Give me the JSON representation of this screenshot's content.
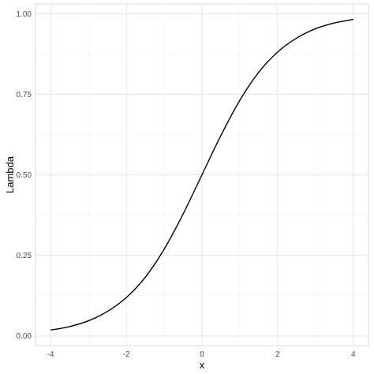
{
  "chart_data": {
    "type": "line",
    "title": "",
    "xlabel": "x",
    "ylabel": "Lambda",
    "xlim": [
      -4.4,
      4.4
    ],
    "ylim": [
      -0.03,
      1.03
    ],
    "x_ticks": [
      -4,
      -2,
      0,
      2,
      4
    ],
    "x_tick_labels": [
      "-4",
      "-2",
      "0",
      "2",
      "4"
    ],
    "y_ticks": [
      0,
      0.25,
      0.5,
      0.75,
      1
    ],
    "y_tick_labels": [
      "0.00",
      "0.25",
      "0.50",
      "0.75",
      "1.00"
    ],
    "grid": true,
    "legend": "none",
    "series": [
      {
        "color": "#000000",
        "x": [
          -4,
          -3.5,
          -3,
          -2.5,
          -2,
          -1.5,
          -1,
          -0.5,
          0,
          0.5,
          1,
          1.5,
          2,
          2.5,
          3,
          3.5,
          4
        ],
        "y": [
          0.018,
          0.029,
          0.047,
          0.076,
          0.119,
          0.182,
          0.269,
          0.378,
          0.5,
          0.622,
          0.731,
          0.818,
          0.881,
          0.924,
          0.953,
          0.971,
          0.982
        ]
      }
    ]
  }
}
